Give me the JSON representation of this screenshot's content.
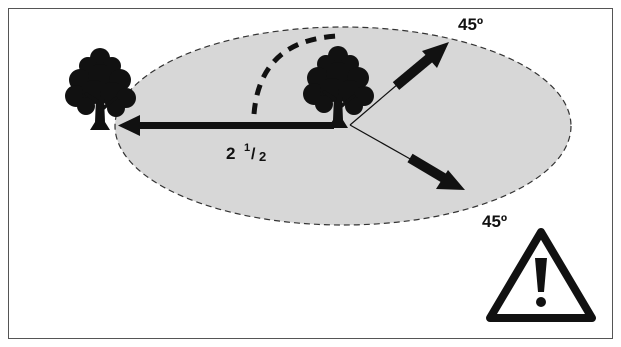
{
  "labels": {
    "angle_upper": "45º",
    "angle_lower": "45º",
    "distance_whole": "2",
    "distance_fraction_numerator": "1",
    "distance_fraction_denominator": "2"
  },
  "icons": {
    "trees": [
      "tree-icon",
      "tree-icon"
    ],
    "warning": "warning-triangle-icon"
  },
  "colors": {
    "ellipse_fill": "#d7d7d7",
    "ink": "#111111",
    "frame": "#555555"
  }
}
